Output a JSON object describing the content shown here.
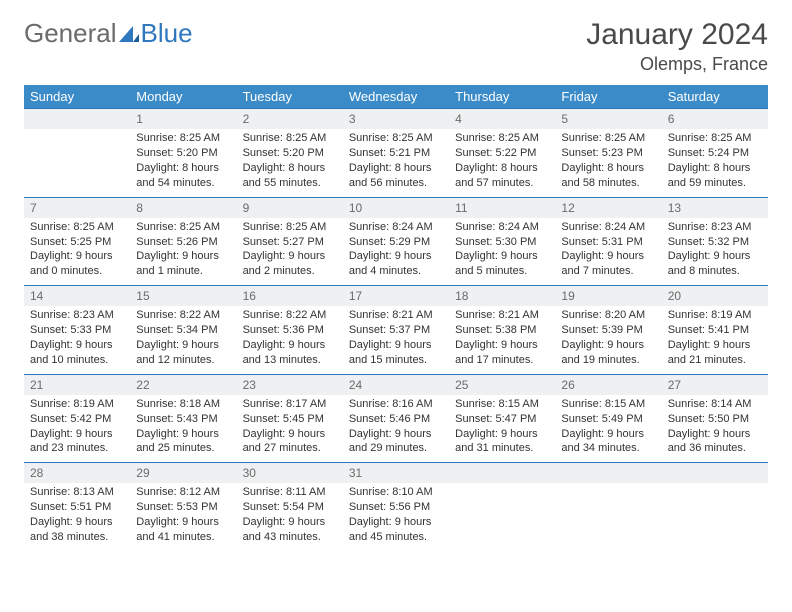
{
  "brand": {
    "part1": "General",
    "part2": "Blue"
  },
  "title": "January 2024",
  "location": "Olemps, France",
  "colors": {
    "header_bg": "#3b8bc8",
    "rule": "#2f78bd",
    "daynum_bg": "#eef0f1",
    "text": "#333333",
    "muted": "#6b6b6b",
    "brand_gray": "#6b6b6b",
    "brand_blue": "#2f78bd"
  },
  "weekdays": [
    "Sunday",
    "Monday",
    "Tuesday",
    "Wednesday",
    "Thursday",
    "Friday",
    "Saturday"
  ],
  "weeks": [
    [
      {
        "n": "",
        "sunrise": "",
        "sunset": "",
        "daylight": ""
      },
      {
        "n": "1",
        "sunrise": "Sunrise: 8:25 AM",
        "sunset": "Sunset: 5:20 PM",
        "daylight": "Daylight: 8 hours and 54 minutes."
      },
      {
        "n": "2",
        "sunrise": "Sunrise: 8:25 AM",
        "sunset": "Sunset: 5:20 PM",
        "daylight": "Daylight: 8 hours and 55 minutes."
      },
      {
        "n": "3",
        "sunrise": "Sunrise: 8:25 AM",
        "sunset": "Sunset: 5:21 PM",
        "daylight": "Daylight: 8 hours and 56 minutes."
      },
      {
        "n": "4",
        "sunrise": "Sunrise: 8:25 AM",
        "sunset": "Sunset: 5:22 PM",
        "daylight": "Daylight: 8 hours and 57 minutes."
      },
      {
        "n": "5",
        "sunrise": "Sunrise: 8:25 AM",
        "sunset": "Sunset: 5:23 PM",
        "daylight": "Daylight: 8 hours and 58 minutes."
      },
      {
        "n": "6",
        "sunrise": "Sunrise: 8:25 AM",
        "sunset": "Sunset: 5:24 PM",
        "daylight": "Daylight: 8 hours and 59 minutes."
      }
    ],
    [
      {
        "n": "7",
        "sunrise": "Sunrise: 8:25 AM",
        "sunset": "Sunset: 5:25 PM",
        "daylight": "Daylight: 9 hours and 0 minutes."
      },
      {
        "n": "8",
        "sunrise": "Sunrise: 8:25 AM",
        "sunset": "Sunset: 5:26 PM",
        "daylight": "Daylight: 9 hours and 1 minute."
      },
      {
        "n": "9",
        "sunrise": "Sunrise: 8:25 AM",
        "sunset": "Sunset: 5:27 PM",
        "daylight": "Daylight: 9 hours and 2 minutes."
      },
      {
        "n": "10",
        "sunrise": "Sunrise: 8:24 AM",
        "sunset": "Sunset: 5:29 PM",
        "daylight": "Daylight: 9 hours and 4 minutes."
      },
      {
        "n": "11",
        "sunrise": "Sunrise: 8:24 AM",
        "sunset": "Sunset: 5:30 PM",
        "daylight": "Daylight: 9 hours and 5 minutes."
      },
      {
        "n": "12",
        "sunrise": "Sunrise: 8:24 AM",
        "sunset": "Sunset: 5:31 PM",
        "daylight": "Daylight: 9 hours and 7 minutes."
      },
      {
        "n": "13",
        "sunrise": "Sunrise: 8:23 AM",
        "sunset": "Sunset: 5:32 PM",
        "daylight": "Daylight: 9 hours and 8 minutes."
      }
    ],
    [
      {
        "n": "14",
        "sunrise": "Sunrise: 8:23 AM",
        "sunset": "Sunset: 5:33 PM",
        "daylight": "Daylight: 9 hours and 10 minutes."
      },
      {
        "n": "15",
        "sunrise": "Sunrise: 8:22 AM",
        "sunset": "Sunset: 5:34 PM",
        "daylight": "Daylight: 9 hours and 12 minutes."
      },
      {
        "n": "16",
        "sunrise": "Sunrise: 8:22 AM",
        "sunset": "Sunset: 5:36 PM",
        "daylight": "Daylight: 9 hours and 13 minutes."
      },
      {
        "n": "17",
        "sunrise": "Sunrise: 8:21 AM",
        "sunset": "Sunset: 5:37 PM",
        "daylight": "Daylight: 9 hours and 15 minutes."
      },
      {
        "n": "18",
        "sunrise": "Sunrise: 8:21 AM",
        "sunset": "Sunset: 5:38 PM",
        "daylight": "Daylight: 9 hours and 17 minutes."
      },
      {
        "n": "19",
        "sunrise": "Sunrise: 8:20 AM",
        "sunset": "Sunset: 5:39 PM",
        "daylight": "Daylight: 9 hours and 19 minutes."
      },
      {
        "n": "20",
        "sunrise": "Sunrise: 8:19 AM",
        "sunset": "Sunset: 5:41 PM",
        "daylight": "Daylight: 9 hours and 21 minutes."
      }
    ],
    [
      {
        "n": "21",
        "sunrise": "Sunrise: 8:19 AM",
        "sunset": "Sunset: 5:42 PM",
        "daylight": "Daylight: 9 hours and 23 minutes."
      },
      {
        "n": "22",
        "sunrise": "Sunrise: 8:18 AM",
        "sunset": "Sunset: 5:43 PM",
        "daylight": "Daylight: 9 hours and 25 minutes."
      },
      {
        "n": "23",
        "sunrise": "Sunrise: 8:17 AM",
        "sunset": "Sunset: 5:45 PM",
        "daylight": "Daylight: 9 hours and 27 minutes."
      },
      {
        "n": "24",
        "sunrise": "Sunrise: 8:16 AM",
        "sunset": "Sunset: 5:46 PM",
        "daylight": "Daylight: 9 hours and 29 minutes."
      },
      {
        "n": "25",
        "sunrise": "Sunrise: 8:15 AM",
        "sunset": "Sunset: 5:47 PM",
        "daylight": "Daylight: 9 hours and 31 minutes."
      },
      {
        "n": "26",
        "sunrise": "Sunrise: 8:15 AM",
        "sunset": "Sunset: 5:49 PM",
        "daylight": "Daylight: 9 hours and 34 minutes."
      },
      {
        "n": "27",
        "sunrise": "Sunrise: 8:14 AM",
        "sunset": "Sunset: 5:50 PM",
        "daylight": "Daylight: 9 hours and 36 minutes."
      }
    ],
    [
      {
        "n": "28",
        "sunrise": "Sunrise: 8:13 AM",
        "sunset": "Sunset: 5:51 PM",
        "daylight": "Daylight: 9 hours and 38 minutes."
      },
      {
        "n": "29",
        "sunrise": "Sunrise: 8:12 AM",
        "sunset": "Sunset: 5:53 PM",
        "daylight": "Daylight: 9 hours and 41 minutes."
      },
      {
        "n": "30",
        "sunrise": "Sunrise: 8:11 AM",
        "sunset": "Sunset: 5:54 PM",
        "daylight": "Daylight: 9 hours and 43 minutes."
      },
      {
        "n": "31",
        "sunrise": "Sunrise: 8:10 AM",
        "sunset": "Sunset: 5:56 PM",
        "daylight": "Daylight: 9 hours and 45 minutes."
      },
      {
        "n": "",
        "sunrise": "",
        "sunset": "",
        "daylight": ""
      },
      {
        "n": "",
        "sunrise": "",
        "sunset": "",
        "daylight": ""
      },
      {
        "n": "",
        "sunrise": "",
        "sunset": "",
        "daylight": ""
      }
    ]
  ]
}
